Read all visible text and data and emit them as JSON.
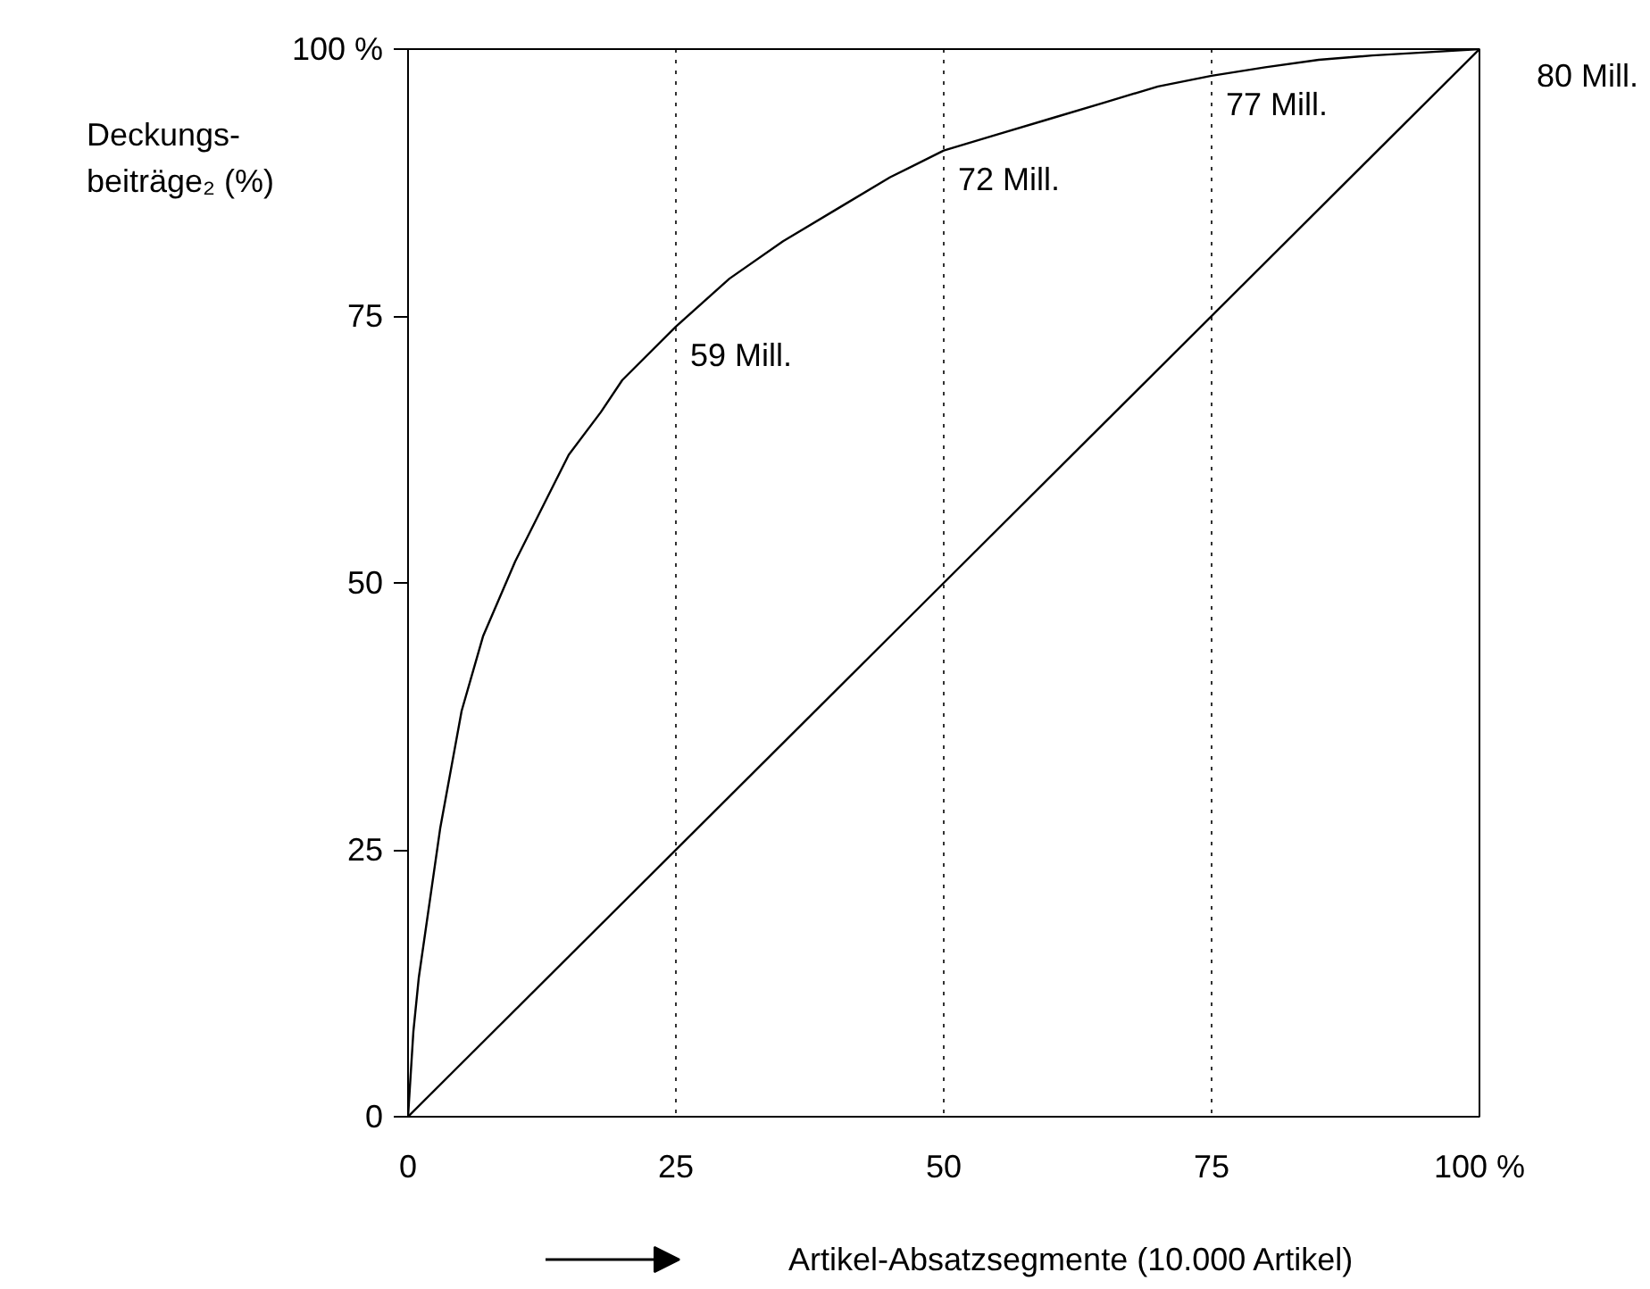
{
  "chart_data": {
    "type": "line",
    "ylabel": "Deckungs-\nbeiträge₂ (%)",
    "xlabel": "Artikel-Absatzsegmente (10.000 Artikel)",
    "series": [
      {
        "color": "#000000",
        "x": [
          0,
          0.5,
          1,
          2,
          3,
          5,
          7,
          10,
          13,
          15,
          18,
          20,
          25,
          30,
          35,
          40,
          45,
          50,
          55,
          60,
          65,
          70,
          75,
          80,
          85,
          90,
          95,
          100
        ],
        "values": [
          0,
          8,
          13,
          20,
          27,
          38,
          45,
          52,
          58,
          62,
          66,
          69,
          74,
          78.5,
          82,
          85,
          88,
          90.5,
          92,
          93.5,
          95,
          96.5,
          97.5,
          98.3,
          99,
          99.4,
          99.7,
          100
        ]
      },
      {
        "color": "#000000",
        "x": [
          0,
          100
        ],
        "values": [
          0,
          100
        ]
      }
    ],
    "xlim": [
      0,
      100
    ],
    "ylim": [
      0,
      100
    ],
    "xticks": [
      0,
      25,
      50,
      75,
      {
        "value": 100,
        "label": "100 %"
      }
    ],
    "yticks": [
      0,
      25,
      50,
      75,
      {
        "value": 100,
        "label": "100 %"
      }
    ],
    "ref_lines": [
      {
        "axis": "x",
        "value": 25,
        "color": "#000000",
        "line_style": "dotted"
      },
      {
        "axis": "x",
        "value": 50,
        "color": "#000000",
        "line_style": "dotted"
      },
      {
        "axis": "x",
        "value": 75,
        "color": "#000000",
        "line_style": "dotted"
      }
    ],
    "annotations": [
      {
        "text": "59 Mill.",
        "x": 25,
        "y": 74
      },
      {
        "text": "72 Mill.",
        "x": 50,
        "y": 90.5
      },
      {
        "text": "77 Mill.",
        "x": 75,
        "y": 97.5
      },
      {
        "text": "80 Mill.",
        "x": 100,
        "y": 100
      }
    ],
    "grid": false,
    "marker": "none",
    "line_style": "solid"
  }
}
